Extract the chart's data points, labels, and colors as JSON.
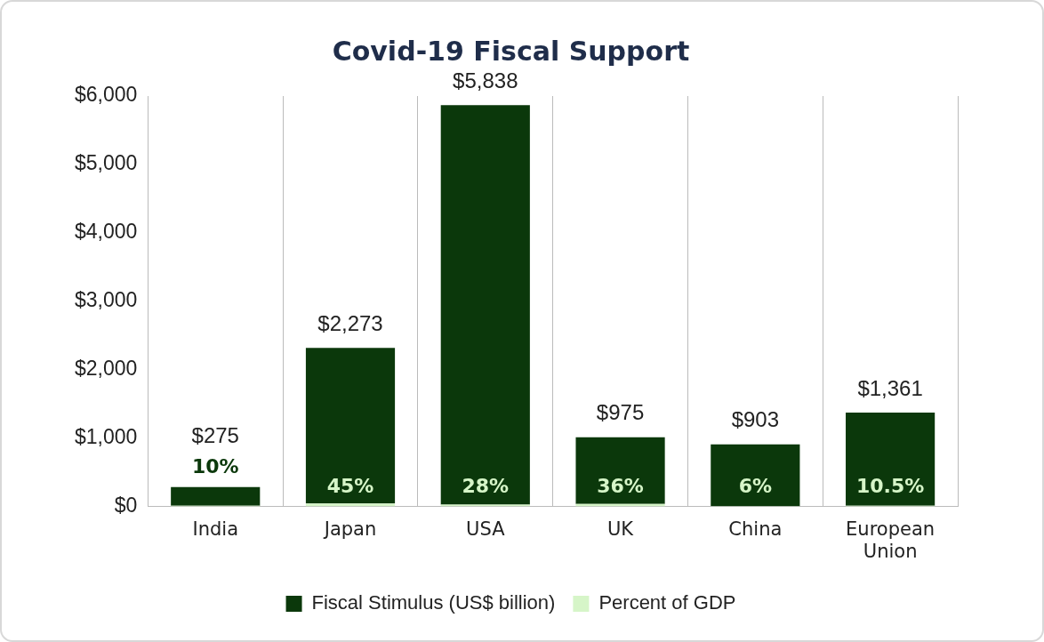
{
  "chart_data": {
    "type": "bar",
    "title": "Covid-19 Fiscal Support",
    "categories": [
      "India",
      "Japan",
      "USA",
      "UK",
      "China",
      "European Union"
    ],
    "stacked": true,
    "series": [
      {
        "name": "Percent of GDP",
        "color": "#d6f5c8",
        "values": [
          10,
          45,
          28,
          36,
          6,
          10.5
        ],
        "value_labels": [
          "10%",
          "45%",
          "28%",
          "36%",
          "6%",
          "10.5%"
        ]
      },
      {
        "name": "Fiscal Stimulus (US$ billion)",
        "color": "#0b380b",
        "values": [
          275,
          2273,
          5838,
          975,
          903,
          1361
        ],
        "value_labels": [
          "$275",
          "$2,273",
          "$5,838",
          "$975",
          "$903",
          "$1,361"
        ]
      }
    ],
    "ylim": [
      0,
      6000
    ],
    "yticks": [
      {
        "value": 0,
        "label": "$0"
      },
      {
        "value": 1000,
        "label": "$1,000"
      },
      {
        "value": 2000,
        "label": "$2,000"
      },
      {
        "value": 3000,
        "label": "$3,000"
      },
      {
        "value": 4000,
        "label": "$4,000"
      },
      {
        "value": 5000,
        "label": "$5,000"
      },
      {
        "value": 6000,
        "label": "$6,000"
      }
    ],
    "grid": "x",
    "legend": "bottom"
  }
}
